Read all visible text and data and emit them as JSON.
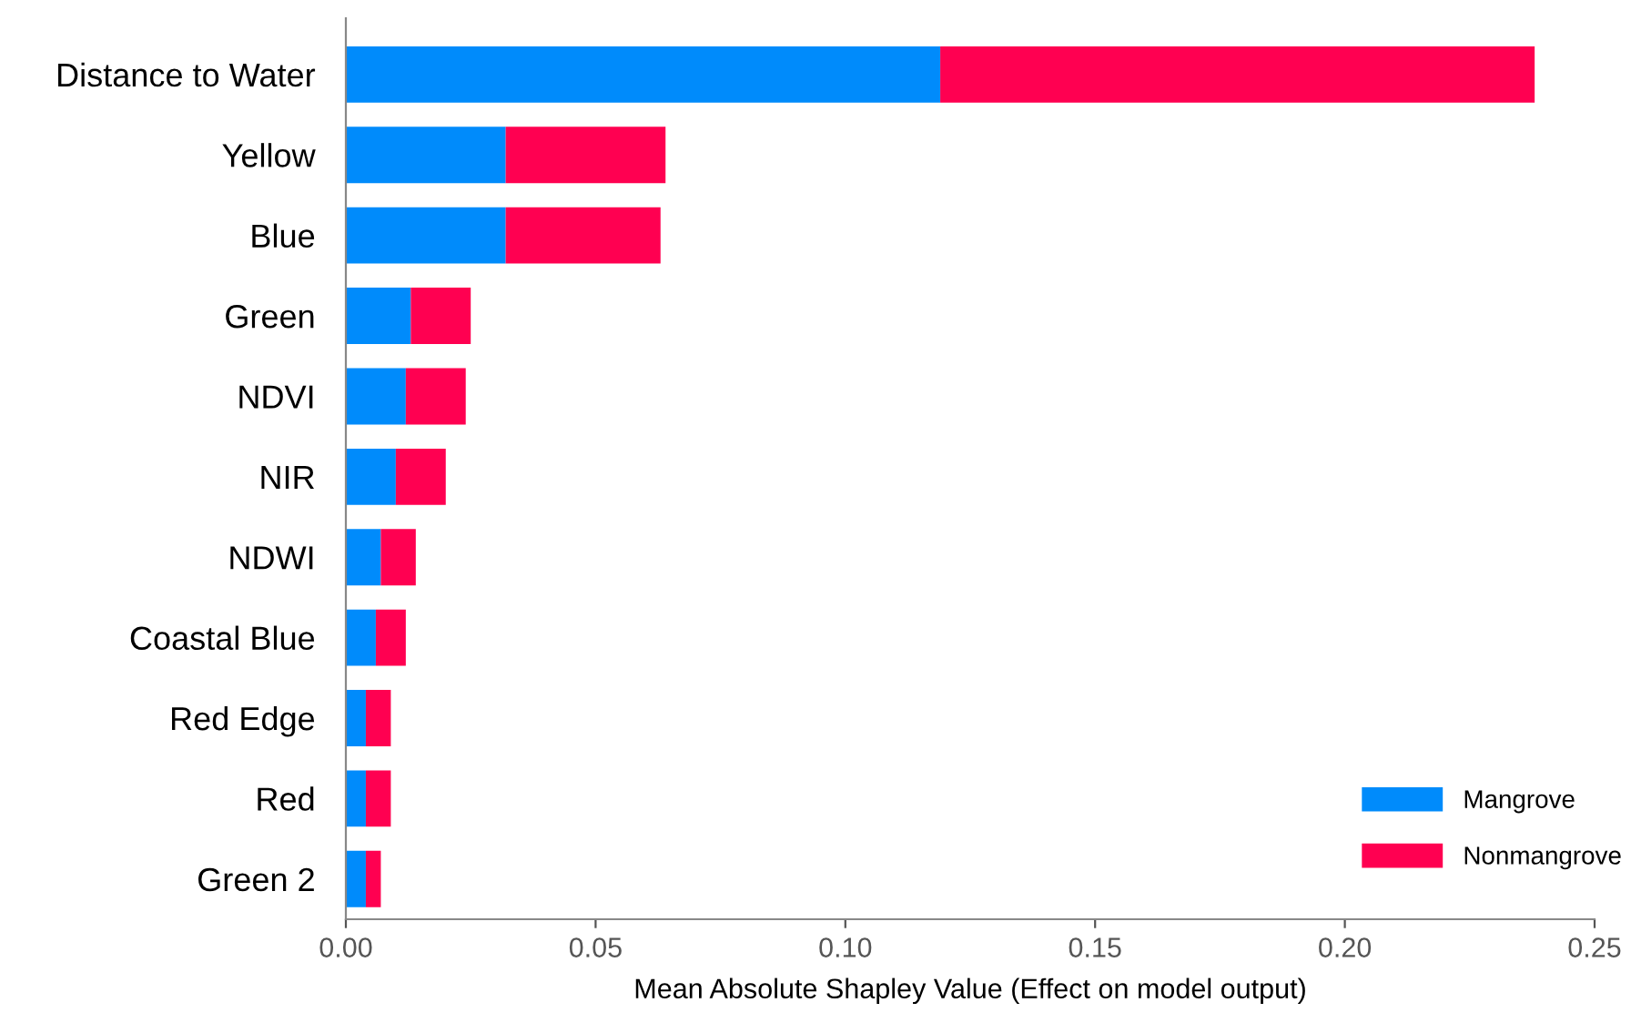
{
  "chart_data": {
    "type": "bar",
    "orientation": "horizontal",
    "stacked": true,
    "xlabel": "Mean Absolute Shapley Value (Effect on model output)",
    "categories": [
      "Distance to Water",
      "Yellow",
      "Blue",
      "Green",
      "NDVI",
      "NIR",
      "NDWI",
      "Coastal Blue",
      "Red Edge",
      "Red",
      "Green 2"
    ],
    "series": [
      {
        "name": "Mangrove",
        "color": "#008bfb",
        "values": [
          0.119,
          0.032,
          0.032,
          0.013,
          0.012,
          0.01,
          0.007,
          0.006,
          0.004,
          0.004,
          0.004
        ]
      },
      {
        "name": "Nonmangrove",
        "color": "#ff0051",
        "values": [
          0.119,
          0.032,
          0.031,
          0.012,
          0.012,
          0.01,
          0.007,
          0.006,
          0.005,
          0.005,
          0.003
        ]
      }
    ],
    "xlim": [
      0,
      0.25
    ],
    "xticks": [
      {
        "value": 0,
        "label": "0.00"
      },
      0.05,
      {
        "value": 0.1,
        "label": "0.10"
      },
      0.15,
      {
        "value": 0.2,
        "label": "0.20"
      },
      0.25
    ],
    "grid": false,
    "legend": "bottom right"
  }
}
